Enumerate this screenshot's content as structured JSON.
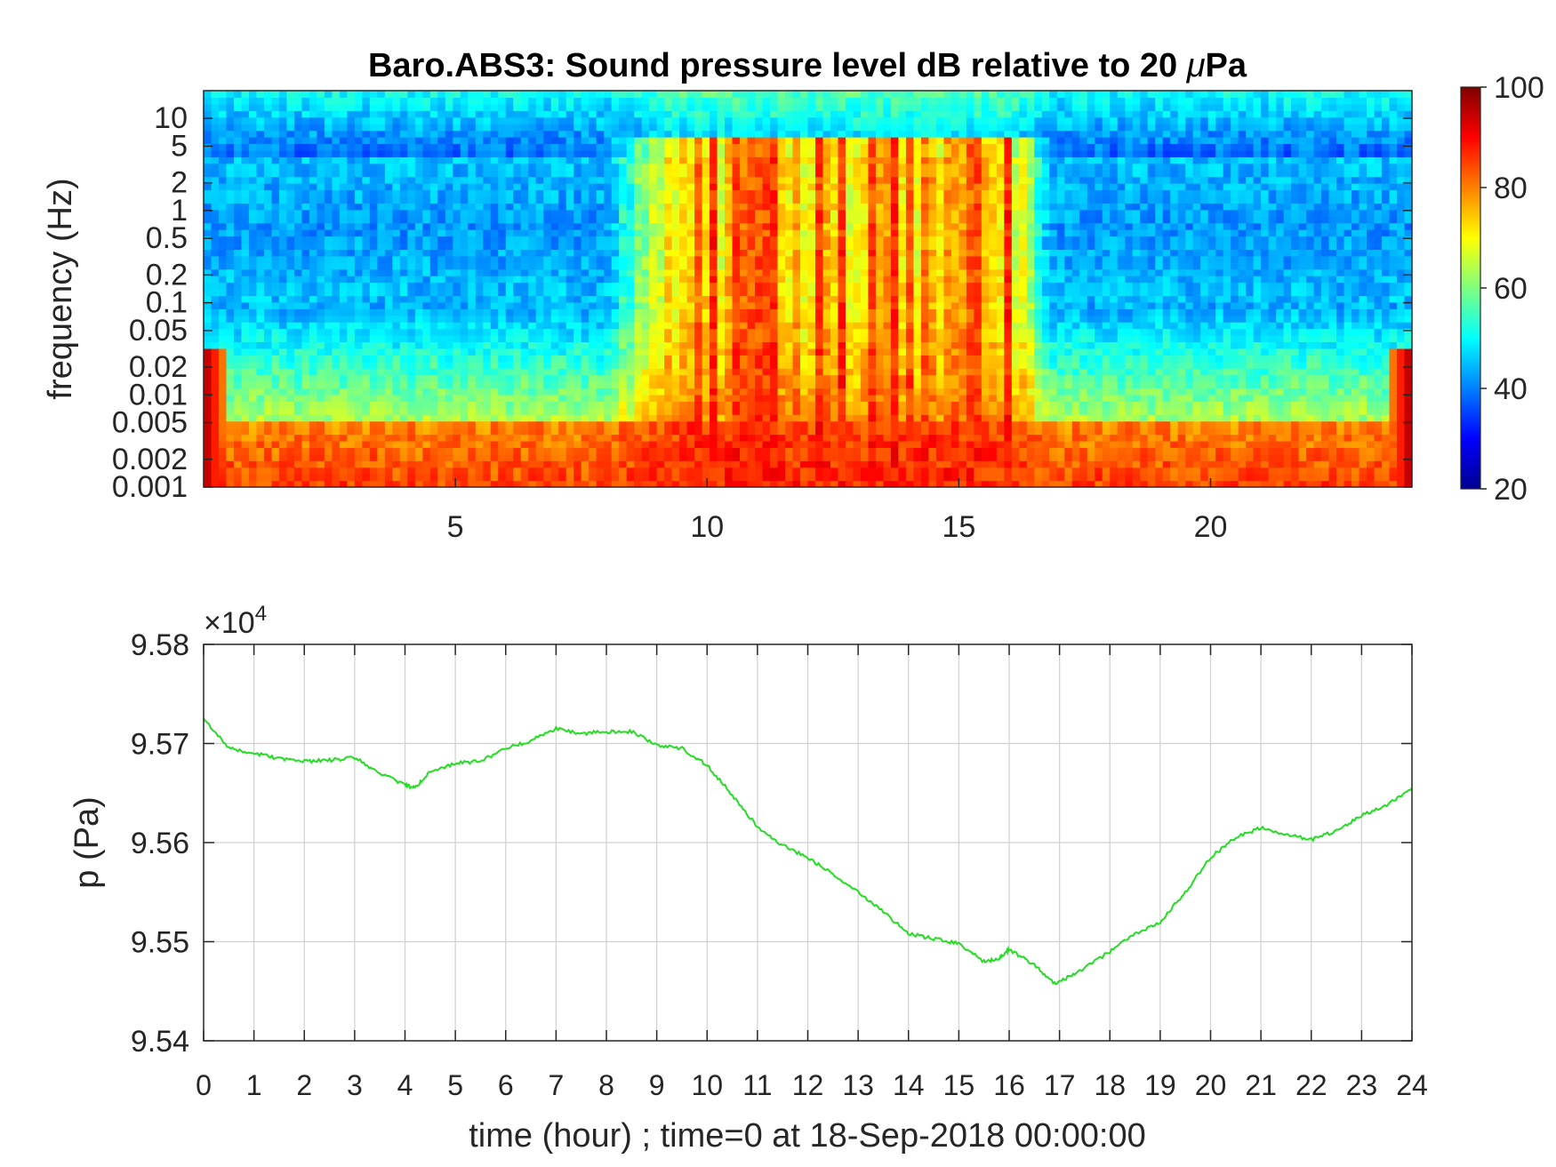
{
  "chart_data": [
    {
      "type": "heatmap",
      "title_prefix": "Baro.ABS3: Sound pressure level dB relative to 20 ",
      "title_mu": "μ",
      "title_suffix": "Pa",
      "xlabel": "",
      "ylabel": "frequency (Hz)",
      "xlim": [
        0,
        24
      ],
      "ylim": [
        0.001,
        20
      ],
      "yscale": "log",
      "x_ticks": [
        5,
        10,
        15,
        20
      ],
      "x_tick_labels": [
        "5",
        "10",
        "15",
        "20"
      ],
      "y_ticks": [
        0.001,
        0.002,
        0.005,
        0.01,
        0.02,
        0.05,
        0.1,
        0.2,
        0.5,
        1,
        2,
        5,
        10
      ],
      "y_tick_labels": [
        "0.001",
        "0.002",
        "0.005",
        "0.01",
        "0.02",
        "0.05",
        "0.1",
        "0.2",
        "0.5",
        "1",
        "2",
        "5",
        "10"
      ],
      "colorbar": {
        "colormap": "jet",
        "clim": [
          20,
          100
        ],
        "ticks": [
          20,
          40,
          60,
          80,
          100
        ],
        "tick_labels": [
          "20",
          "40",
          "60",
          "80",
          "100"
        ]
      },
      "grid": false,
      "summary": {
        "quiet_hours_mid_band_db": 35,
        "active_hours": [
          9,
          16.5
        ],
        "active_peak_db": 88,
        "low_freq_db": 85
      }
    },
    {
      "type": "line",
      "xlabel": "time (hour) ; time=0 at 18-Sep-2018 00:00:00",
      "ylabel": "p (Pa)",
      "xlim": [
        0,
        24
      ],
      "ylim": [
        9.54,
        9.58
      ],
      "y_exponent_base": "×10",
      "y_exponent_power": "4",
      "x_ticks": [
        0,
        1,
        2,
        3,
        4,
        5,
        6,
        7,
        8,
        9,
        10,
        11,
        12,
        13,
        14,
        15,
        16,
        17,
        18,
        19,
        20,
        21,
        22,
        23,
        24
      ],
      "x_tick_labels": [
        "0",
        "1",
        "2",
        "3",
        "4",
        "5",
        "6",
        "7",
        "8",
        "9",
        "10",
        "11",
        "12",
        "13",
        "14",
        "15",
        "16",
        "17",
        "18",
        "19",
        "20",
        "21",
        "22",
        "23",
        "24"
      ],
      "y_ticks": [
        9.54,
        9.55,
        9.56,
        9.57,
        9.58
      ],
      "y_tick_labels": [
        "9.54",
        "9.55",
        "9.56",
        "9.57",
        "9.58"
      ],
      "grid": true,
      "line_color": "#22dd22",
      "series": [
        {
          "x": [
            0,
            0.5,
            1,
            1.5,
            2,
            2.5,
            3,
            3.5,
            4,
            4.2,
            4.5,
            5,
            5.5,
            6,
            6.5,
            7,
            7.5,
            8,
            8.5,
            9,
            9.5,
            10,
            10.5,
            11,
            11.5,
            12,
            12.5,
            13,
            13.5,
            14,
            14.5,
            15,
            15.5,
            15.8,
            16,
            16.5,
            16.9,
            17.3,
            18,
            18.5,
            19,
            19.5,
            20,
            20.5,
            21,
            21.5,
            22,
            22.5,
            23,
            23.5,
            24
          ],
          "y": [
            9.5725,
            9.5695,
            9.569,
            9.5685,
            9.5682,
            9.5683,
            9.5686,
            9.567,
            9.5658,
            9.5655,
            9.5672,
            9.568,
            9.5682,
            9.5695,
            9.5703,
            9.5715,
            9.571,
            9.5712,
            9.5712,
            9.5698,
            9.5695,
            9.5678,
            9.5648,
            9.5616,
            9.5597,
            9.5585,
            9.5568,
            9.555,
            9.553,
            9.5508,
            9.5503,
            9.5498,
            9.548,
            9.5483,
            9.5492,
            9.5477,
            9.5458,
            9.5467,
            9.549,
            9.5508,
            9.552,
            9.555,
            9.5585,
            9.5605,
            9.5615,
            9.5608,
            9.5603,
            9.5612,
            9.5627,
            9.5638,
            9.5655
          ]
        }
      ]
    }
  ]
}
